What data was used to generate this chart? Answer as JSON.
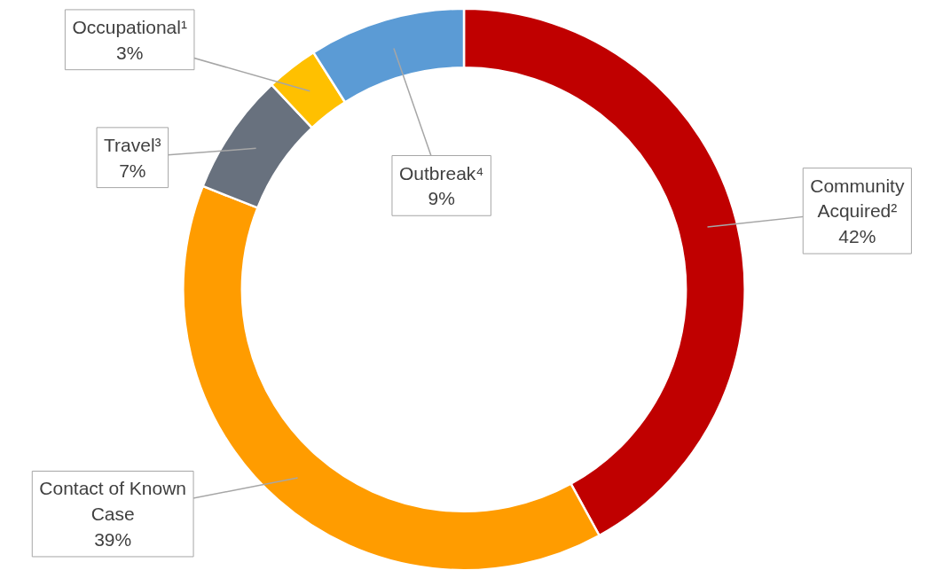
{
  "chart_data": {
    "type": "donut",
    "categories": [
      "Community Acquired²",
      "Contact of Known Case",
      "Travel³",
      "Occupational¹",
      "Outbreak⁴"
    ],
    "values": [
      42,
      39,
      7,
      3,
      9
    ],
    "value_labels": [
      "42%",
      "39%",
      "7%",
      "3%",
      "9%"
    ],
    "colors": [
      "#c00000",
      "#ff9c00",
      "#68717e",
      "#ffc000",
      "#5b9bd5"
    ]
  }
}
